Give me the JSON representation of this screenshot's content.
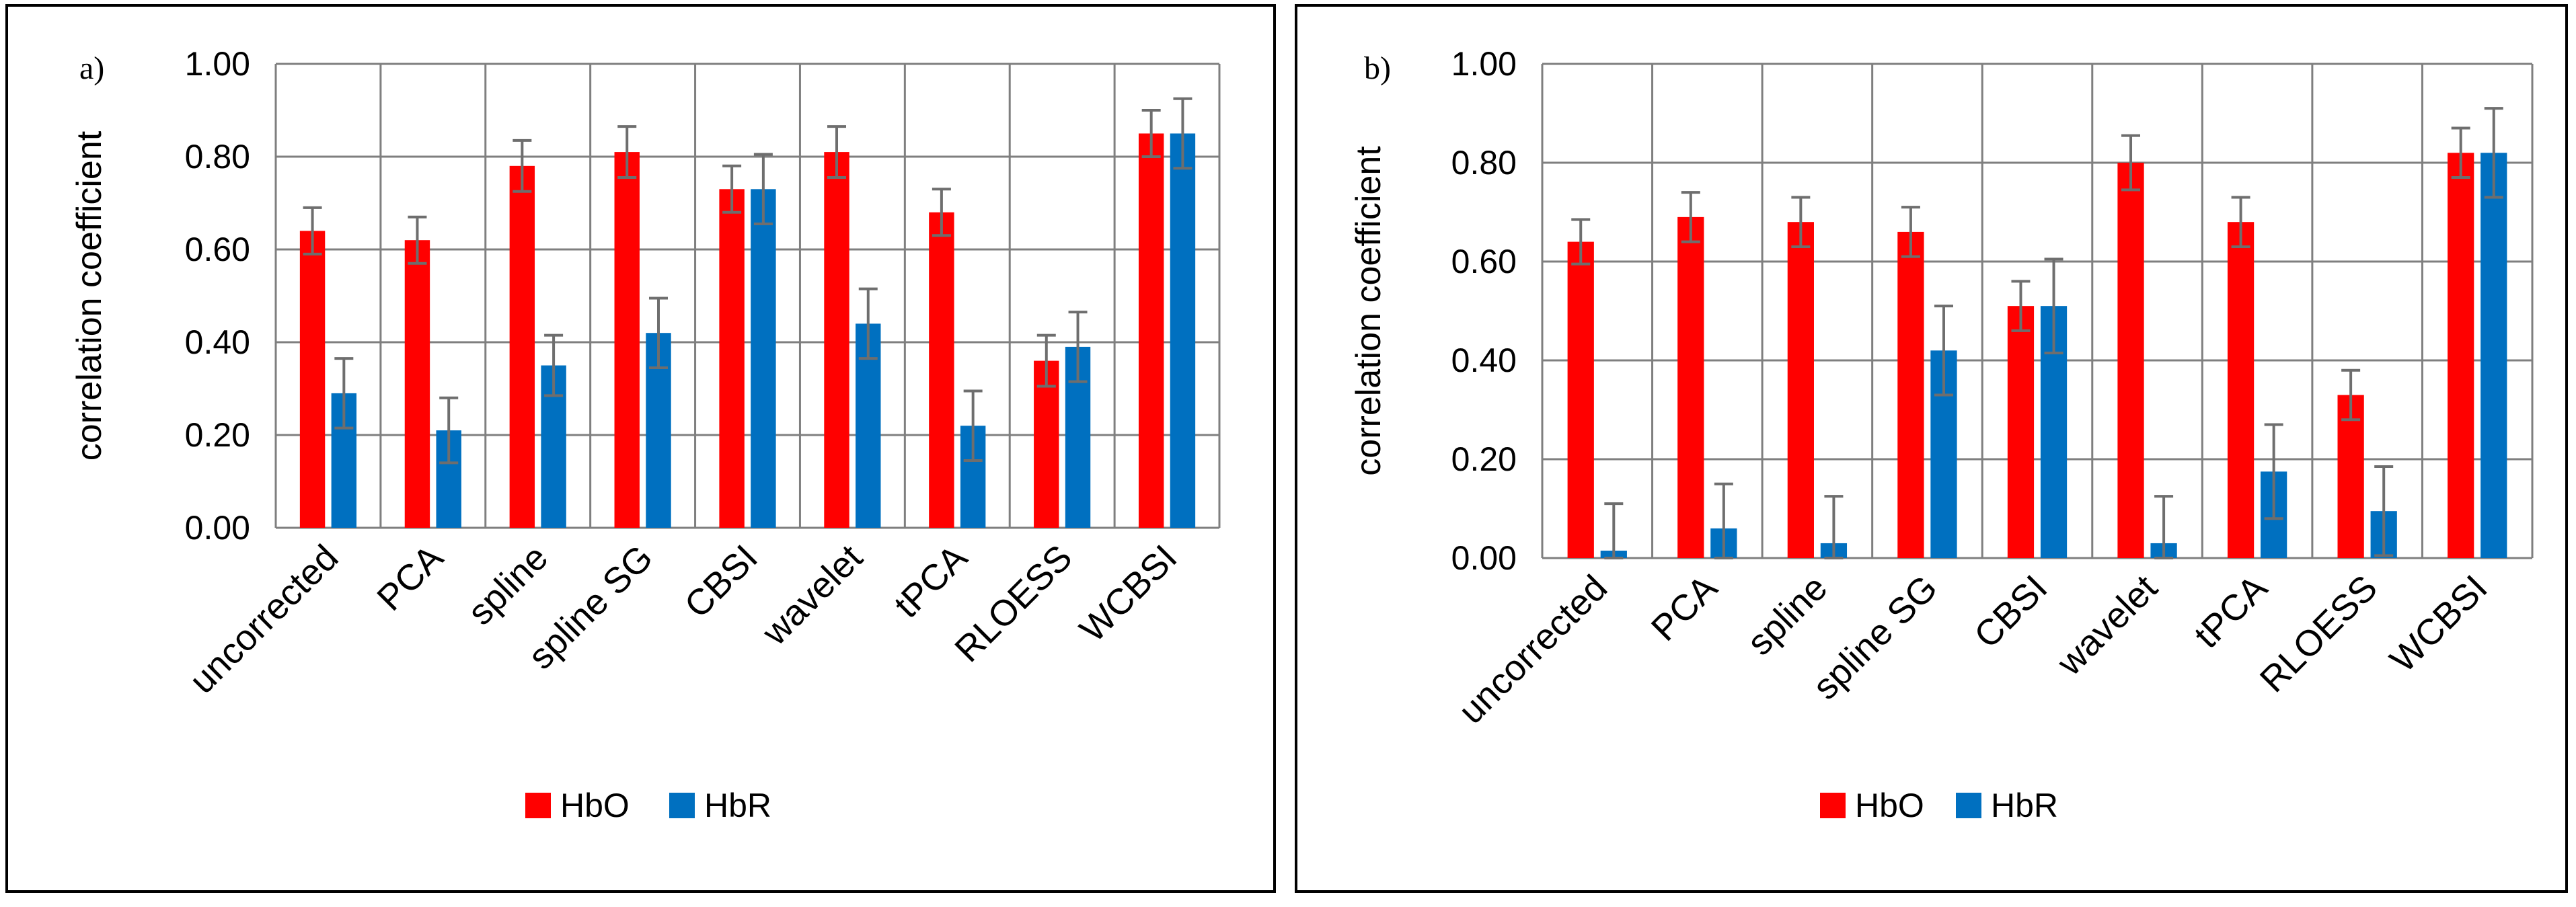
{
  "colors": {
    "hbo": "#FF0000",
    "hbr": "#0070C0",
    "grid": "#7F7F7F",
    "error": "#6E6E6E",
    "border": "#000000",
    "text": "#000000"
  },
  "chart_data": [
    {
      "type": "bar",
      "panel_label": "a)",
      "ylabel": "correlation coefficient",
      "ylim": [
        0,
        1
      ],
      "yticks": [
        "0.00",
        "0.20",
        "0.40",
        "0.60",
        "0.80",
        "1.00"
      ],
      "grid": true,
      "legend_position": "bottom",
      "categories": [
        "uncorrected",
        "PCA",
        "spline",
        "spline SG",
        "CBSI",
        "wavelet",
        "tPCA",
        "RLOESS",
        "WCBSI"
      ],
      "series": [
        {
          "name": "HbO",
          "color_key": "hbo",
          "values": [
            0.64,
            0.62,
            0.78,
            0.81,
            0.73,
            0.81,
            0.68,
            0.36,
            0.85
          ],
          "errors": [
            0.05,
            0.05,
            0.055,
            0.055,
            0.05,
            0.055,
            0.05,
            0.055,
            0.05
          ]
        },
        {
          "name": "HbR",
          "color_key": "hbr",
          "values": [
            0.29,
            0.21,
            0.35,
            0.42,
            0.73,
            0.44,
            0.22,
            0.39,
            0.85
          ],
          "errors": [
            0.075,
            0.07,
            0.065,
            0.075,
            0.075,
            0.075,
            0.075,
            0.075,
            0.075
          ]
        }
      ]
    },
    {
      "type": "bar",
      "panel_label": "b)",
      "ylabel": "correlation coefficient",
      "ylim": [
        0,
        1
      ],
      "yticks": [
        "0.00",
        "0.20",
        "0.40",
        "0.60",
        "0.80",
        "1.00"
      ],
      "grid": true,
      "legend_position": "bottom",
      "categories": [
        "uncorrected",
        "PCA",
        "spline",
        "spline SG",
        "CBSI",
        "wavelet",
        "tPCA",
        "RLOESS",
        "WCBSI"
      ],
      "series": [
        {
          "name": "HbO",
          "color_key": "hbo",
          "values": [
            0.64,
            0.69,
            0.68,
            0.66,
            0.51,
            0.8,
            0.68,
            0.33,
            0.82
          ],
          "errors": [
            0.045,
            0.05,
            0.05,
            0.05,
            0.05,
            0.055,
            0.05,
            0.05,
            0.05
          ]
        },
        {
          "name": "HbR",
          "color_key": "hbr",
          "values": [
            0.015,
            0.06,
            0.03,
            0.42,
            0.51,
            0.03,
            0.175,
            0.095,
            0.82
          ],
          "errors": [
            0.095,
            0.09,
            0.095,
            0.09,
            0.095,
            0.095,
            0.095,
            0.09,
            0.09
          ]
        }
      ]
    }
  ]
}
